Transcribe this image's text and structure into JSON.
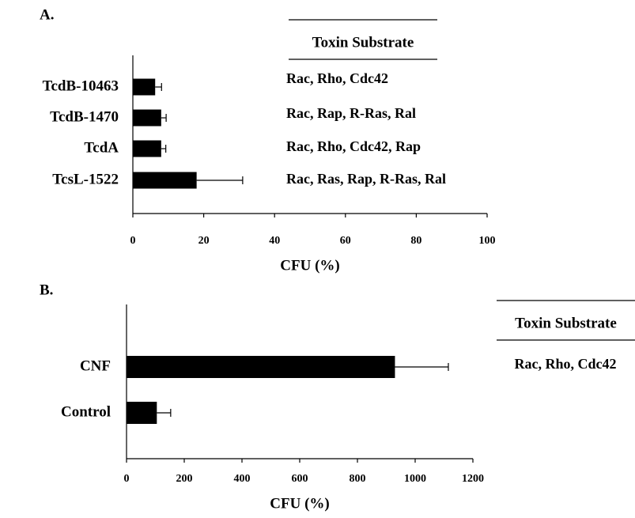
{
  "chart_data": [
    {
      "type": "bar",
      "orientation": "horizontal",
      "panel_label": "A.",
      "categories": [
        "TcdB-10463",
        "TcdB-1470",
        "TcdA",
        "TcsL-1522"
      ],
      "values": [
        6.3,
        8,
        8,
        18
      ],
      "errors": [
        1.8,
        1.4,
        1.3,
        13
      ],
      "color": "#000000",
      "xlabel": "CFU (%)",
      "xlim": [
        0,
        100
      ],
      "xticks": [
        0,
        20,
        40,
        60,
        80,
        100
      ],
      "table_header": "Toxin Substrate",
      "substrates": [
        "Rac, Rho, Cdc42",
        "Rac, Rap, R-Ras, Ral",
        "Rac, Rho, Cdc42, Rap",
        "Rac, Ras, Rap, R-Ras, Ral"
      ]
    },
    {
      "type": "bar",
      "orientation": "horizontal",
      "panel_label": "B.",
      "categories": [
        "CNF",
        "Control"
      ],
      "values": [
        930,
        105
      ],
      "errors": [
        185,
        48
      ],
      "color": "#000000",
      "xlabel": "CFU (%)",
      "xlim": [
        0,
        1200
      ],
      "xticks": [
        0,
        200,
        400,
        600,
        800,
        1000,
        1200
      ],
      "table_header": "Toxin Substrate",
      "substrates": [
        "Rac, Rho, Cdc42"
      ]
    }
  ]
}
